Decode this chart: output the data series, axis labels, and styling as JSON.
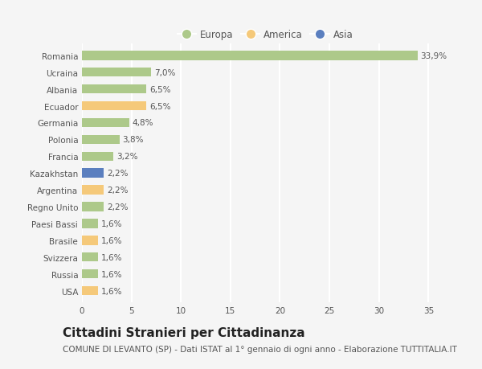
{
  "countries": [
    "Romania",
    "Ucraina",
    "Albania",
    "Ecuador",
    "Germania",
    "Polonia",
    "Francia",
    "Kazakhstan",
    "Argentina",
    "Regno Unito",
    "Paesi Bassi",
    "Brasile",
    "Svizzera",
    "Russia",
    "USA"
  ],
  "values": [
    33.9,
    7.0,
    6.5,
    6.5,
    4.8,
    3.8,
    3.2,
    2.2,
    2.2,
    2.2,
    1.6,
    1.6,
    1.6,
    1.6,
    1.6
  ],
  "labels": [
    "33,9%",
    "7,0%",
    "6,5%",
    "6,5%",
    "4,8%",
    "3,8%",
    "3,2%",
    "2,2%",
    "2,2%",
    "2,2%",
    "1,6%",
    "1,6%",
    "1,6%",
    "1,6%",
    "1,6%"
  ],
  "continent": [
    "Europa",
    "Europa",
    "Europa",
    "America",
    "Europa",
    "Europa",
    "Europa",
    "Asia",
    "America",
    "Europa",
    "Europa",
    "America",
    "Europa",
    "Europa",
    "America"
  ],
  "colors": {
    "Europa": "#adc98a",
    "America": "#f5c97a",
    "Asia": "#5b7fbf"
  },
  "legend_order": [
    "Europa",
    "America",
    "Asia"
  ],
  "title": "Cittadini Stranieri per Cittadinanza",
  "subtitle": "COMUNE DI LEVANTO (SP) - Dati ISTAT al 1° gennaio di ogni anno - Elaborazione TUTTITALIA.IT",
  "xlim": [
    0,
    37
  ],
  "xticks": [
    0,
    5,
    10,
    15,
    20,
    25,
    30,
    35
  ],
  "background_color": "#f5f5f5",
  "grid_color": "#ffffff",
  "bar_height": 0.55,
  "title_fontsize": 11,
  "subtitle_fontsize": 7.5,
  "label_fontsize": 7.5,
  "tick_fontsize": 7.5,
  "legend_fontsize": 8.5
}
